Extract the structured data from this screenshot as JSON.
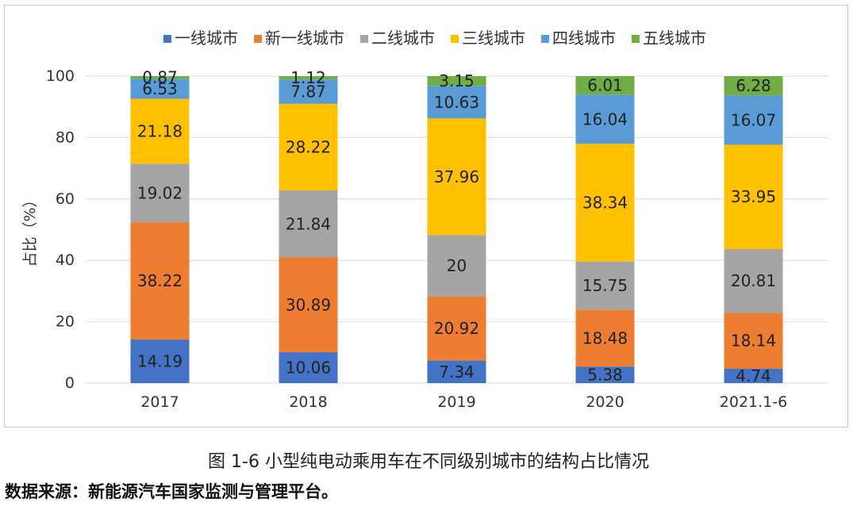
{
  "chart_data": {
    "type": "bar",
    "stacked": true,
    "categories": [
      "2017",
      "2018",
      "2019",
      "2020",
      "2021.1-6"
    ],
    "ylabel": "占比（%）",
    "ylim": [
      0,
      100
    ],
    "yticks": [
      "0",
      "20",
      "40",
      "60",
      "80",
      "100"
    ],
    "grid": true,
    "legend_position": "top",
    "series": [
      {
        "name": "一线城市",
        "color": "#4472c4",
        "values": [
          14.19,
          10.06,
          7.34,
          5.38,
          4.74
        ],
        "labels": [
          "14.19",
          "10.06",
          "7.34",
          "5.38",
          "4.74"
        ]
      },
      {
        "name": "新一线城市",
        "color": "#ed7d31",
        "values": [
          38.22,
          30.89,
          20.92,
          18.48,
          18.14
        ],
        "labels": [
          "38.22",
          "30.89",
          "20.92",
          "18.48",
          "18.14"
        ]
      },
      {
        "name": "二线城市",
        "color": "#a5a5a5",
        "values": [
          19.02,
          21.84,
          20,
          15.75,
          20.81
        ],
        "labels": [
          "19.02",
          "21.84",
          "20",
          "15.75",
          "20.81"
        ]
      },
      {
        "name": "三线城市",
        "color": "#ffc000",
        "values": [
          21.18,
          28.22,
          37.96,
          38.34,
          33.95
        ],
        "labels": [
          "21.18",
          "28.22",
          "37.96",
          "38.34",
          "33.95"
        ]
      },
      {
        "name": "四线城市",
        "color": "#5b9bd5",
        "values": [
          6.53,
          7.87,
          10.63,
          16.04,
          16.07
        ],
        "labels": [
          "6.53",
          "7.87",
          "10.63",
          "16.04",
          "16.07"
        ]
      },
      {
        "name": "五线城市",
        "color": "#70ad47",
        "values": [
          0.87,
          1.12,
          3.15,
          6.01,
          6.28
        ],
        "labels": [
          "0.87",
          "1.12",
          "3.15",
          "6.01",
          "6.28"
        ]
      }
    ]
  },
  "caption": {
    "figure_number": "图 1-6",
    "title": "小型纯电动乘用车在不同级别城市的结构占比情况"
  },
  "source_note": "数据来源：新能源汽车国家监测与管理平台。"
}
